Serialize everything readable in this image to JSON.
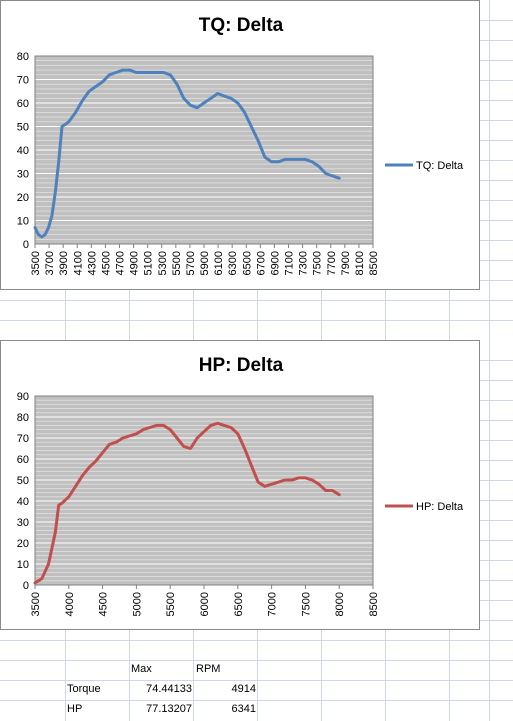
{
  "chart_data": [
    {
      "type": "line",
      "title": "TQ: Delta",
      "legend_position": "right",
      "x_tick_labels": [
        "3500",
        "3700",
        "3900",
        "4100",
        "4300",
        "4500",
        "4700",
        "4900",
        "5100",
        "5300",
        "5500",
        "5700",
        "5900",
        "6100",
        "6300",
        "6500",
        "6700",
        "6900",
        "7100",
        "7300",
        "7500",
        "7700",
        "7900",
        "8100",
        "8500"
      ],
      "xlim": [
        3500,
        8500
      ],
      "ylim": [
        0,
        80
      ],
      "y_ticks": [
        0,
        10,
        20,
        30,
        40,
        50,
        60,
        70,
        80
      ],
      "grid": true,
      "series": [
        {
          "name": "TQ: Delta",
          "color": "#4f81bd",
          "x": [
            3500,
            3550,
            3600,
            3650,
            3700,
            3750,
            3800,
            3850,
            3900,
            3950,
            4000,
            4100,
            4200,
            4300,
            4400,
            4500,
            4600,
            4700,
            4800,
            4900,
            5000,
            5100,
            5200,
            5300,
            5400,
            5500,
            5600,
            5700,
            5800,
            5900,
            6000,
            6100,
            6200,
            6300,
            6400,
            6500,
            6600,
            6700,
            6800,
            6900,
            7000,
            7100,
            7200,
            7300,
            7400,
            7500,
            7600,
            7700,
            7800,
            7900,
            8000
          ],
          "y": [
            7,
            4,
            3,
            4,
            7,
            12,
            22,
            35,
            50,
            51,
            52,
            56,
            61,
            65,
            67,
            69,
            72,
            73,
            74,
            74,
            73,
            73,
            73,
            73,
            73,
            72,
            68,
            62,
            59,
            58,
            60,
            62,
            64,
            63,
            62,
            60,
            56,
            50,
            44,
            37,
            35,
            35,
            36,
            36,
            36,
            36,
            35,
            33,
            30,
            29,
            28
          ]
        }
      ]
    },
    {
      "type": "line",
      "title": "HP: Delta",
      "legend_position": "right",
      "x_tick_labels": [
        "3500",
        "4000",
        "4500",
        "5000",
        "5500",
        "6000",
        "6500",
        "7000",
        "7500",
        "8000",
        "8500"
      ],
      "xlim": [
        3500,
        8500
      ],
      "ylim": [
        0,
        90
      ],
      "y_ticks": [
        0,
        10,
        20,
        30,
        40,
        50,
        60,
        70,
        80,
        90
      ],
      "grid": true,
      "series": [
        {
          "name": "HP: Delta",
          "color": "#c0504d",
          "x": [
            3500,
            3600,
            3700,
            3800,
            3850,
            3900,
            4000,
            4100,
            4200,
            4300,
            4400,
            4500,
            4600,
            4700,
            4800,
            4900,
            5000,
            5100,
            5200,
            5300,
            5400,
            5500,
            5600,
            5700,
            5800,
            5900,
            6000,
            6100,
            6200,
            6300,
            6400,
            6500,
            6600,
            6700,
            6800,
            6900,
            7000,
            7100,
            7200,
            7300,
            7400,
            7500,
            7600,
            7700,
            7800,
            7900,
            8000
          ],
          "y": [
            1,
            3,
            10,
            25,
            38,
            39,
            42,
            47,
            52,
            56,
            59,
            63,
            67,
            68,
            70,
            71,
            72,
            74,
            75,
            76,
            76,
            74,
            70,
            66,
            65,
            70,
            73,
            76,
            77,
            76,
            75,
            72,
            65,
            57,
            49,
            47,
            48,
            49,
            50,
            50,
            51,
            51,
            50,
            48,
            45,
            45,
            43
          ]
        }
      ]
    }
  ],
  "table": {
    "headers": [
      "Max",
      "RPM"
    ],
    "rows": [
      {
        "label": "Torque",
        "max": "74.44133",
        "rpm": "4914"
      },
      {
        "label": "HP",
        "max": "77.13207",
        "rpm": "6341"
      }
    ]
  }
}
